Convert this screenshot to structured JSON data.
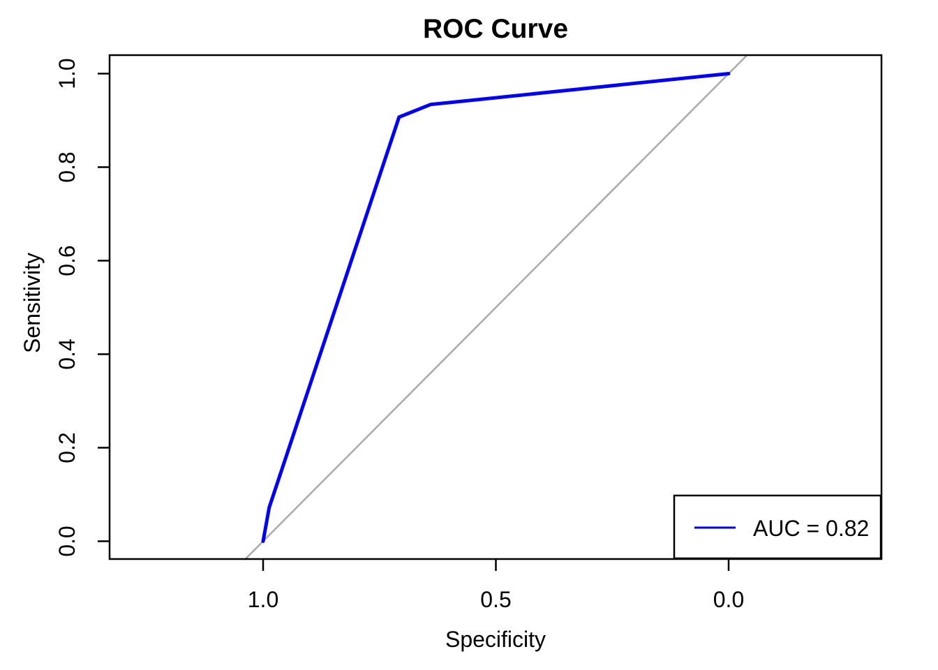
{
  "title": "ROC Curve",
  "axes": {
    "x_label": "Specificity",
    "y_label": "Sensitivity",
    "x_ticks": [
      "1.0",
      "0.5",
      "0.0"
    ],
    "y_ticks": [
      "0.0",
      "0.2",
      "0.4",
      "0.6",
      "0.8",
      "1.0"
    ]
  },
  "legend": {
    "label": "AUC = 0.82",
    "position": "bottomright"
  },
  "colors": {
    "roc_curve": "#0000ff",
    "diagonal": "#aaaaaa",
    "axis": "#000000",
    "background": "#ffffff"
  },
  "chart_data": {
    "type": "line",
    "title": "ROC Curve",
    "xlabel": "Specificity",
    "ylabel": "Sensitivity",
    "x_axis_reversed": true,
    "xlim": [
      1.0,
      0.0
    ],
    "ylim": [
      0.0,
      1.0
    ],
    "x_tick_values": [
      1.0,
      0.5,
      0.0
    ],
    "y_tick_values": [
      0.0,
      0.2,
      0.4,
      0.6,
      0.8,
      1.0
    ],
    "grid": false,
    "aspect_ratio": 1,
    "auc": 0.82,
    "legend_position": "bottomright",
    "legend_entries": [
      "AUC = 0.82"
    ],
    "series": [
      {
        "name": "ROC curve",
        "color": "#0000ff",
        "line_width": 5,
        "points_specificity_sensitivity": [
          [
            1.0,
            0.0
          ],
          [
            0.987,
            0.072
          ],
          [
            0.708,
            0.907
          ],
          [
            0.64,
            0.934
          ],
          [
            0.0,
            1.0
          ]
        ]
      },
      {
        "name": "chance diagonal",
        "color": "#aaaaaa",
        "line_width": 2.5,
        "points_specificity_sensitivity": [
          [
            1.04,
            -0.04
          ],
          [
            -0.04,
            1.04
          ]
        ]
      }
    ]
  }
}
